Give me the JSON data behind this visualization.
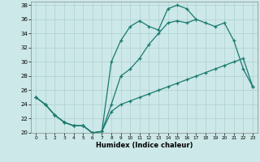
{
  "xlabel": "Humidex (Indice chaleur)",
  "xlim": [
    -0.5,
    23.5
  ],
  "ylim": [
    20,
    38.5
  ],
  "xticks": [
    0,
    1,
    2,
    3,
    4,
    5,
    6,
    7,
    8,
    9,
    10,
    11,
    12,
    13,
    14,
    15,
    16,
    17,
    18,
    19,
    20,
    21,
    22,
    23
  ],
  "yticks": [
    20,
    22,
    24,
    26,
    28,
    30,
    32,
    34,
    36,
    38
  ],
  "bg_color": "#cce8e8",
  "grid_color": "#b0d0d0",
  "line_color": "#1a7a6e",
  "line1_x": [
    0,
    1,
    2,
    3,
    4,
    5,
    6,
    7,
    8,
    9,
    10,
    11,
    12,
    13,
    14,
    15,
    16,
    17
  ],
  "line1_y": [
    25.0,
    24.0,
    22.5,
    21.5,
    21.0,
    21.0,
    20.0,
    20.2,
    30.0,
    33.0,
    35.0,
    35.8,
    35.0,
    34.5,
    37.5,
    38.0,
    37.5,
    36.0
  ],
  "line2_x": [
    0,
    1,
    2,
    3,
    4,
    5,
    6,
    7,
    8,
    9,
    10,
    11,
    12,
    13,
    14,
    15,
    16,
    17,
    18,
    19,
    20,
    21,
    22,
    23
  ],
  "line2_y": [
    25.0,
    24.0,
    22.5,
    21.5,
    21.0,
    21.0,
    20.0,
    20.2,
    24.0,
    28.0,
    29.0,
    30.5,
    32.5,
    34.0,
    35.5,
    35.8,
    35.5,
    36.0,
    35.5,
    35.0,
    35.5,
    33.0,
    29.0,
    26.5
  ],
  "line3_x": [
    0,
    1,
    2,
    3,
    4,
    5,
    6,
    7,
    8,
    9,
    10,
    11,
    12,
    13,
    14,
    15,
    16,
    17,
    18,
    19,
    20,
    21,
    22,
    23
  ],
  "line3_y": [
    25.0,
    24.0,
    22.5,
    21.5,
    21.0,
    21.0,
    20.0,
    20.2,
    23.0,
    24.0,
    24.5,
    25.0,
    25.5,
    26.0,
    26.5,
    27.0,
    27.5,
    28.0,
    28.5,
    29.0,
    29.5,
    30.0,
    30.5,
    26.5
  ]
}
